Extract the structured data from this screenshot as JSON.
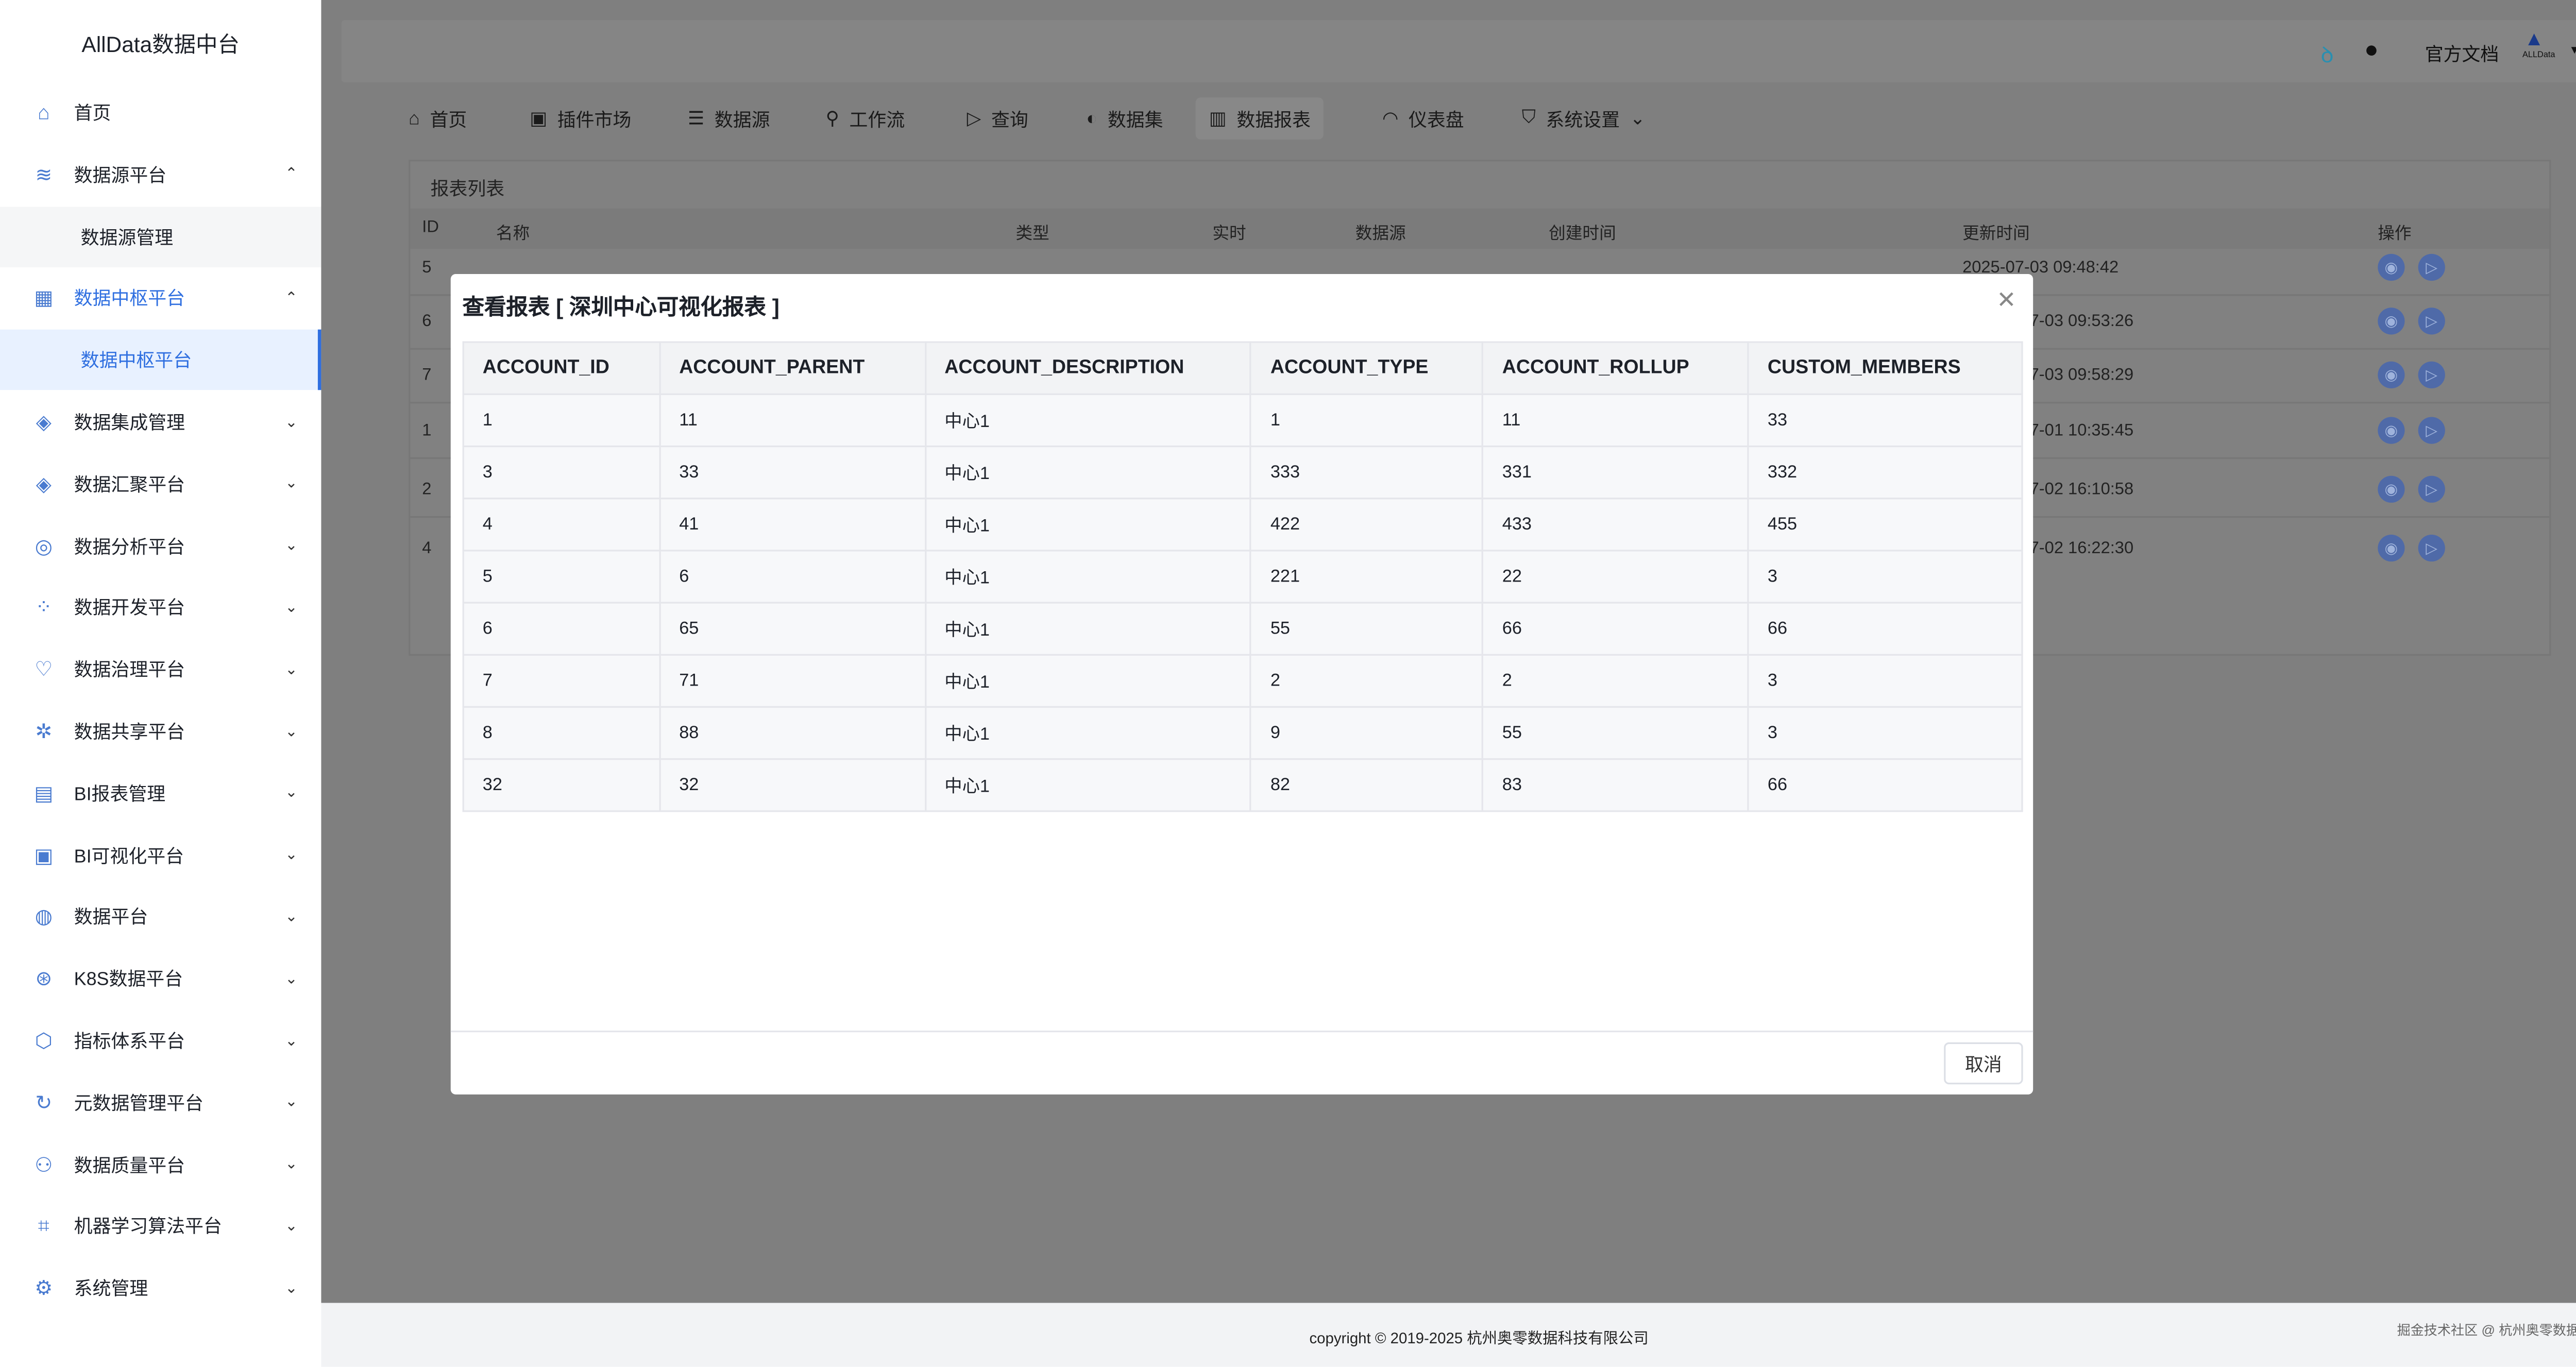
{
  "sidebar": {
    "title": "AllData数据中台",
    "items": [
      {
        "label": "首页",
        "icon": "home-icon",
        "glyph": "⌂"
      },
      {
        "label": "数据源平台",
        "icon": "database-icon",
        "glyph": "≋",
        "chev": "⌃"
      },
      {
        "label": "数据源管理",
        "sub": true
      },
      {
        "label": "数据中枢平台",
        "icon": "apps-icon",
        "glyph": "▦",
        "chev": "⌃",
        "active": true
      },
      {
        "label": "数据中枢平台",
        "sub": true,
        "activesub": true
      },
      {
        "label": "数据集成管理",
        "icon": "layers-icon",
        "glyph": "◈",
        "chev": "⌄"
      },
      {
        "label": "数据汇聚平台",
        "icon": "layers-icon",
        "glyph": "◈",
        "chev": "⌄"
      },
      {
        "label": "数据分析平台",
        "icon": "analysis-icon",
        "glyph": "◎",
        "chev": "⌄"
      },
      {
        "label": "数据开发平台",
        "icon": "dev-icon",
        "glyph": "⁘",
        "chev": "⌄"
      },
      {
        "label": "数据治理平台",
        "icon": "governance-icon",
        "glyph": "♡",
        "chev": "⌄"
      },
      {
        "label": "数据共享平台",
        "icon": "share-icon",
        "glyph": "✲",
        "chev": "⌄"
      },
      {
        "label": "BI报表管理",
        "icon": "bi-report-icon",
        "glyph": "▤",
        "chev": "⌄"
      },
      {
        "label": "BI可视化平台",
        "icon": "bi-visual-icon",
        "glyph": "▣",
        "chev": "⌄"
      },
      {
        "label": "数据平台",
        "icon": "chart-icon",
        "glyph": "◍",
        "chev": "⌄"
      },
      {
        "label": "K8S数据平台",
        "icon": "k8s-icon",
        "glyph": "⊛",
        "chev": "⌄"
      },
      {
        "label": "指标体系平台",
        "icon": "cube-icon",
        "glyph": "⬡",
        "chev": "⌄"
      },
      {
        "label": "元数据管理平台",
        "icon": "metadata-icon",
        "glyph": "↻",
        "chev": "⌄"
      },
      {
        "label": "数据质量平台",
        "icon": "quality-icon",
        "glyph": "⚇",
        "chev": "⌄"
      },
      {
        "label": "机器学习算法平台",
        "icon": "ml-icon",
        "glyph": "⌗",
        "chev": "⌄"
      },
      {
        "label": "系统管理",
        "icon": "settings-icon",
        "glyph": "⚙",
        "chev": "⌄"
      }
    ]
  },
  "header": {
    "docs": "官方文档",
    "brand": "ALLData",
    "caret": "▾"
  },
  "nav": [
    {
      "label": "首页",
      "glyph": "⌂",
      "icon": "home-icon"
    },
    {
      "label": "插件市场",
      "glyph": "▣",
      "icon": "store-icon"
    },
    {
      "label": "数据源",
      "glyph": "☰",
      "icon": "list-icon"
    },
    {
      "label": "工作流",
      "glyph": "⚲",
      "icon": "workflow-icon"
    },
    {
      "label": "查询",
      "glyph": "▷",
      "icon": "query-icon"
    },
    {
      "label": "数据集",
      "glyph": "◐",
      "icon": "dataset-icon"
    },
    {
      "label": "数据报表",
      "glyph": "▥",
      "icon": "report-icon",
      "active": true
    },
    {
      "label": "仪表盘",
      "glyph": "◠",
      "icon": "dashboard-icon"
    },
    {
      "label": "系统设置",
      "glyph": "⛉",
      "icon": "shield-icon",
      "chev": "⌄"
    }
  ],
  "list": {
    "title": "报表列表",
    "columns": [
      "ID",
      "名称",
      "类型",
      "实时",
      "数据源",
      "创建时间",
      "更新时间",
      "操作"
    ],
    "rows": [
      {
        "id": "5",
        "updated": "2025-07-03 09:48:42"
      },
      {
        "id": "6",
        "updated": "7-03 09:53:26"
      },
      {
        "id": "7",
        "updated": "7-03 09:58:29"
      },
      {
        "id": "1",
        "updated": "7-01 10:35:45"
      },
      {
        "id": "2",
        "updated": "7-02 16:10:58"
      },
      {
        "id": "4",
        "updated": "7-02 16:22:30"
      }
    ]
  },
  "modal": {
    "title": "查看报表 [ 深圳中心可视化报表 ]",
    "cancel": "取消",
    "columns": [
      "ACCOUNT_ID",
      "ACCOUNT_PARENT",
      "ACCOUNT_DESCRIPTION",
      "ACCOUNT_TYPE",
      "ACCOUNT_ROLLUP",
      "CUSTOM_MEMBERS"
    ],
    "rows": [
      [
        "1",
        "11",
        "中心1",
        "1",
        "11",
        "33"
      ],
      [
        "3",
        "33",
        "中心1",
        "333",
        "331",
        "332"
      ],
      [
        "4",
        "41",
        "中心1",
        "422",
        "433",
        "455"
      ],
      [
        "5",
        "6",
        "中心1",
        "221",
        "22",
        "3"
      ],
      [
        "6",
        "65",
        "中心1",
        "55",
        "66",
        "66"
      ],
      [
        "7",
        "71",
        "中心1",
        "2",
        "2",
        "3"
      ],
      [
        "8",
        "88",
        "中心1",
        "9",
        "55",
        "3"
      ],
      [
        "32",
        "32",
        "中心1",
        "82",
        "83",
        "66"
      ]
    ]
  },
  "footer": {
    "copyright": "copyright © 2019-2025 杭州奥零数据科技有限公司",
    "watermark": "掘金技术社区 @ 杭州奥零数据科技"
  },
  "colors": {
    "accent": "#2f6fe0",
    "overlay": "#7f7f7f"
  }
}
